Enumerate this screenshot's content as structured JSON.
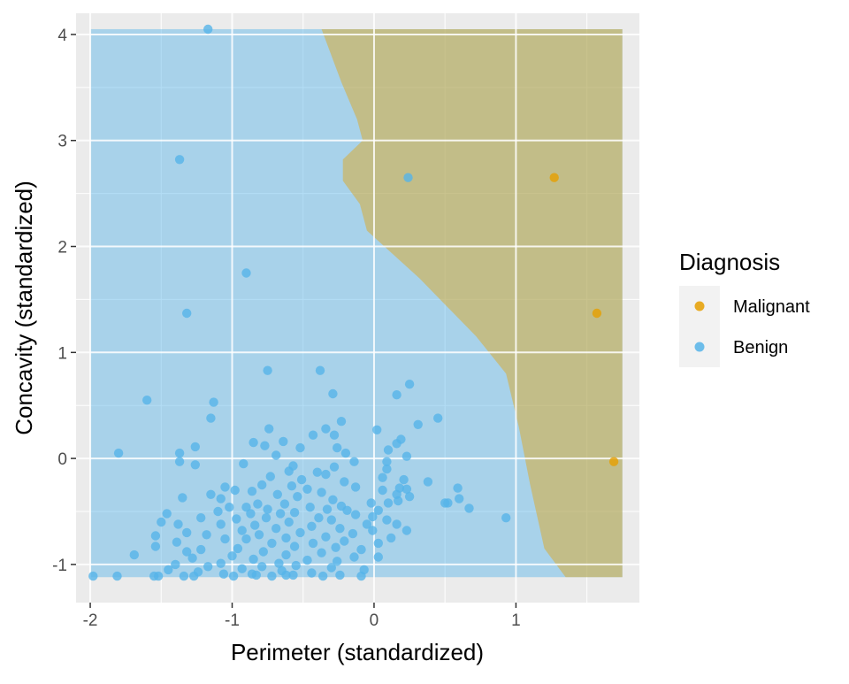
{
  "chart_data": {
    "type": "scatter",
    "title": "",
    "xlabel": "Perimeter (standardized)",
    "ylabel": "Concavity (standardized)",
    "xlim": [
      -2.1,
      1.87
    ],
    "ylim": [
      -1.36,
      4.2
    ],
    "x_ticks": [
      -2,
      -1,
      0,
      1
    ],
    "x_tick_labels": [
      "-2",
      "-1",
      "0",
      "1"
    ],
    "y_ticks": [
      -1,
      0,
      1,
      2,
      3,
      4
    ],
    "y_tick_labels": [
      "-1",
      "0",
      "1",
      "2",
      "3",
      "4"
    ],
    "grid": true,
    "legend": {
      "title": "Diagnosis",
      "placement": "right",
      "entries": [
        {
          "label": "Malignant",
          "color": "#E69F00"
        },
        {
          "label": "Benign",
          "color": "#56B4E9"
        }
      ]
    },
    "decision_region": {
      "description_colors": {
        "Malignant": "#E69F00",
        "Benign": "#56B4E9"
      },
      "x_range": [
        -2.0,
        1.75
      ],
      "y_range": [
        -1.12,
        4.05
      ],
      "boundary": [
        [
          -0.37,
          4.05
        ],
        [
          -0.23,
          3.55
        ],
        [
          -0.12,
          3.2
        ],
        [
          -0.08,
          3.0
        ],
        [
          -0.22,
          2.82
        ],
        [
          -0.22,
          2.62
        ],
        [
          -0.1,
          2.4
        ],
        [
          -0.05,
          2.15
        ],
        [
          0.32,
          1.7
        ],
        [
          0.72,
          1.15
        ],
        [
          0.93,
          0.8
        ],
        [
          1.02,
          0.3
        ],
        [
          1.1,
          -0.25
        ],
        [
          1.2,
          -0.85
        ],
        [
          1.35,
          -1.12
        ]
      ]
    },
    "series": [
      {
        "name": "Malignant",
        "color": "#E69F00",
        "points": [
          [
            1.27,
            2.65
          ],
          [
            1.57,
            1.37
          ],
          [
            1.69,
            -0.03
          ]
        ]
      },
      {
        "name": "Benign",
        "color": "#56B4E9",
        "points": [
          [
            -1.17,
            4.05
          ],
          [
            -1.37,
            2.82
          ],
          [
            0.24,
            2.65
          ],
          [
            -0.9,
            1.75
          ],
          [
            -1.32,
            1.37
          ],
          [
            -0.75,
            0.83
          ],
          [
            -0.38,
            0.83
          ],
          [
            0.25,
            0.7
          ],
          [
            -0.29,
            0.61
          ],
          [
            0.16,
            0.6
          ],
          [
            -1.6,
            0.55
          ],
          [
            -1.13,
            0.53
          ],
          [
            0.45,
            0.38
          ],
          [
            -1.15,
            0.38
          ],
          [
            -0.23,
            0.35
          ],
          [
            0.31,
            0.32
          ],
          [
            -0.74,
            0.28
          ],
          [
            -0.34,
            0.28
          ],
          [
            0.02,
            0.27
          ],
          [
            -0.43,
            0.22
          ],
          [
            -0.28,
            0.22
          ],
          [
            0.19,
            0.18
          ],
          [
            0.16,
            0.14
          ],
          [
            -0.64,
            0.16
          ],
          [
            -0.85,
            0.15
          ],
          [
            -0.77,
            0.12
          ],
          [
            -1.26,
            0.11
          ],
          [
            -0.26,
            0.1
          ],
          [
            -0.52,
            0.1
          ],
          [
            0.1,
            0.08
          ],
          [
            -0.2,
            0.05
          ],
          [
            -1.8,
            0.05
          ],
          [
            -1.37,
            0.05
          ],
          [
            -0.69,
            0.03
          ],
          [
            0.23,
            0.02
          ],
          [
            -0.14,
            -0.03
          ],
          [
            0.09,
            -0.03
          ],
          [
            -0.92,
            -0.05
          ],
          [
            -0.57,
            -0.07
          ],
          [
            -1.37,
            -0.03
          ],
          [
            -1.26,
            -0.06
          ],
          [
            -0.28,
            -0.08
          ],
          [
            0.09,
            -0.1
          ],
          [
            -0.6,
            -0.12
          ],
          [
            -0.4,
            -0.13
          ],
          [
            -0.73,
            -0.17
          ],
          [
            -0.34,
            -0.15
          ],
          [
            0.06,
            -0.18
          ],
          [
            -0.51,
            -0.2
          ],
          [
            0.21,
            -0.2
          ],
          [
            -0.21,
            -0.22
          ],
          [
            0.38,
            -0.22
          ],
          [
            -0.79,
            -0.25
          ],
          [
            -0.58,
            -0.26
          ],
          [
            -0.13,
            -0.27
          ],
          [
            0.18,
            -0.28
          ],
          [
            0.23,
            -0.29
          ],
          [
            -1.05,
            -0.27
          ],
          [
            -0.98,
            -0.3
          ],
          [
            -0.86,
            -0.31
          ],
          [
            -0.47,
            -0.29
          ],
          [
            0.59,
            -0.28
          ],
          [
            0.06,
            -0.3
          ],
          [
            -1.15,
            -0.34
          ],
          [
            -0.68,
            -0.34
          ],
          [
            -0.37,
            -0.32
          ],
          [
            0.16,
            -0.34
          ],
          [
            -0.54,
            -0.36
          ],
          [
            0.25,
            -0.36
          ],
          [
            -1.35,
            -0.37
          ],
          [
            -1.08,
            -0.38
          ],
          [
            0.6,
            -0.38
          ],
          [
            -0.29,
            -0.39
          ],
          [
            0.52,
            -0.42
          ],
          [
            0.5,
            -0.42
          ],
          [
            0.17,
            -0.4
          ],
          [
            0.1,
            -0.42
          ],
          [
            -0.02,
            -0.42
          ],
          [
            -0.63,
            -0.43
          ],
          [
            -0.82,
            -0.43
          ],
          [
            -0.9,
            -0.46
          ],
          [
            -0.23,
            -0.45
          ],
          [
            -0.45,
            -0.46
          ],
          [
            0.67,
            -0.47
          ],
          [
            -1.02,
            -0.46
          ],
          [
            -0.33,
            -0.48
          ],
          [
            -0.75,
            -0.48
          ],
          [
            -1.1,
            -0.5
          ],
          [
            -0.19,
            -0.49
          ],
          [
            0.03,
            -0.49
          ],
          [
            -0.56,
            -0.51
          ],
          [
            -0.87,
            -0.52
          ],
          [
            -1.46,
            -0.52
          ],
          [
            -0.66,
            -0.52
          ],
          [
            -0.13,
            -0.53
          ],
          [
            -0.01,
            -0.55
          ],
          [
            0.93,
            -0.56
          ],
          [
            -0.39,
            -0.56
          ],
          [
            -1.22,
            -0.56
          ],
          [
            -0.97,
            -0.57
          ],
          [
            -0.76,
            -0.56
          ],
          [
            -0.3,
            -0.58
          ],
          [
            0.09,
            -0.58
          ],
          [
            -1.5,
            -0.6
          ],
          [
            -0.6,
            -0.6
          ],
          [
            -1.38,
            -0.62
          ],
          [
            -0.05,
            -0.62
          ],
          [
            -0.84,
            -0.63
          ],
          [
            -1.08,
            -0.62
          ],
          [
            0.16,
            -0.62
          ],
          [
            -0.44,
            -0.64
          ],
          [
            -0.24,
            -0.66
          ],
          [
            -0.69,
            -0.66
          ],
          [
            -0.93,
            -0.68
          ],
          [
            -0.01,
            -0.68
          ],
          [
            0.23,
            -0.68
          ],
          [
            -1.32,
            -0.7
          ],
          [
            -0.52,
            -0.7
          ],
          [
            -0.15,
            -0.71
          ],
          [
            -0.81,
            -0.72
          ],
          [
            -1.18,
            -0.72
          ],
          [
            -1.54,
            -0.73
          ],
          [
            -0.34,
            -0.74
          ],
          [
            0.12,
            -0.75
          ],
          [
            -0.62,
            -0.75
          ],
          [
            -1.05,
            -0.76
          ],
          [
            -0.9,
            -0.76
          ],
          [
            -0.21,
            -0.78
          ],
          [
            -1.39,
            -0.79
          ],
          [
            -0.72,
            -0.8
          ],
          [
            -0.43,
            -0.8
          ],
          [
            0.03,
            -0.8
          ],
          [
            -1.54,
            -0.83
          ],
          [
            -0.56,
            -0.83
          ],
          [
            -0.27,
            -0.84
          ],
          [
            -0.96,
            -0.85
          ],
          [
            -1.22,
            -0.86
          ],
          [
            -0.09,
            -0.86
          ],
          [
            -1.32,
            -0.88
          ],
          [
            -0.78,
            -0.88
          ],
          [
            -0.37,
            -0.89
          ],
          [
            -1.69,
            -0.91
          ],
          [
            -0.62,
            -0.91
          ],
          [
            -1.0,
            -0.92
          ],
          [
            0.03,
            -0.93
          ],
          [
            -0.14,
            -0.93
          ],
          [
            -1.28,
            -0.94
          ],
          [
            -0.85,
            -0.95
          ],
          [
            -0.47,
            -0.96
          ],
          [
            -0.26,
            -0.97
          ],
          [
            -1.08,
            -0.99
          ],
          [
            -0.67,
            -0.99
          ],
          [
            -1.4,
            -1.0
          ],
          [
            -0.55,
            -1.01
          ],
          [
            -0.79,
            -1.02
          ],
          [
            -1.17,
            -1.02
          ],
          [
            -0.3,
            -1.03
          ],
          [
            -0.93,
            -1.04
          ],
          [
            -1.45,
            -1.05
          ],
          [
            -0.07,
            -1.05
          ],
          [
            -0.65,
            -1.06
          ],
          [
            -1.24,
            -1.07
          ],
          [
            -0.44,
            -1.08
          ],
          [
            -0.86,
            -1.09
          ],
          [
            -1.06,
            -1.09
          ],
          [
            -0.57,
            -1.1
          ],
          [
            -1.98,
            -1.11
          ],
          [
            -1.81,
            -1.11
          ],
          [
            -1.55,
            -1.11
          ],
          [
            -1.34,
            -1.11
          ],
          [
            -1.52,
            -1.11
          ],
          [
            -0.99,
            -1.11
          ],
          [
            -0.72,
            -1.11
          ],
          [
            -0.36,
            -1.11
          ],
          [
            -0.24,
            -1.1
          ],
          [
            -1.27,
            -1.11
          ],
          [
            -0.09,
            -1.11
          ],
          [
            -0.83,
            -1.1
          ],
          [
            -0.62,
            -1.1
          ]
        ]
      }
    ]
  }
}
